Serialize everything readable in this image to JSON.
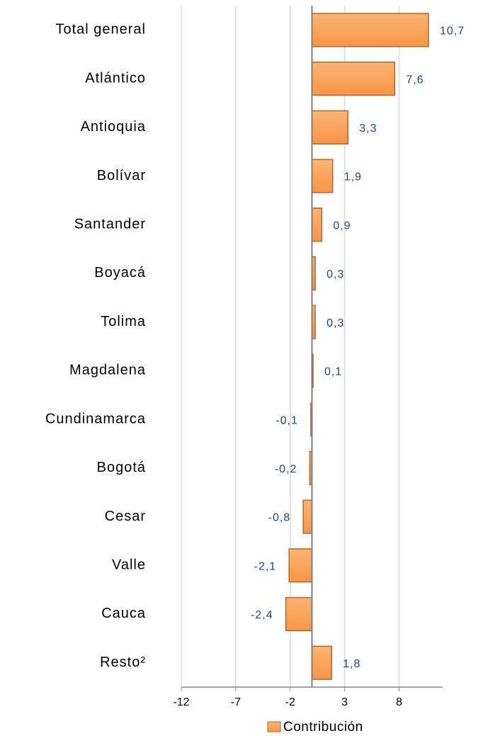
{
  "chart_data": {
    "type": "bar",
    "orientation": "horizontal",
    "categories": [
      "Total general",
      "Atlántico",
      "Antioquia",
      "Bolívar",
      "Santander",
      "Boyacá",
      "Tolima",
      "Magdalena",
      "Cundinamarca",
      "Bogotá",
      "Cesar",
      "Valle",
      "Cauca",
      "Resto²"
    ],
    "series": [
      {
        "name": "Contribución",
        "color": "#f79646",
        "values": [
          10.7,
          7.6,
          3.3,
          1.9,
          0.9,
          0.3,
          0.3,
          0.1,
          -0.1,
          -0.2,
          -0.8,
          -2.1,
          -2.4,
          1.8
        ],
        "value_labels": [
          "10,7",
          "7,6",
          "3,3",
          "1,9",
          "0,9",
          "0,3",
          "0,3",
          "0,1",
          "-0,1",
          "-0,2",
          "-0,8",
          "-2,1",
          "-2,4",
          "1,8"
        ]
      }
    ],
    "xlim": [
      -12,
      12
    ],
    "xticks": [
      -12,
      -7,
      -2,
      3,
      8
    ],
    "grid": true,
    "legend": "bottom"
  }
}
